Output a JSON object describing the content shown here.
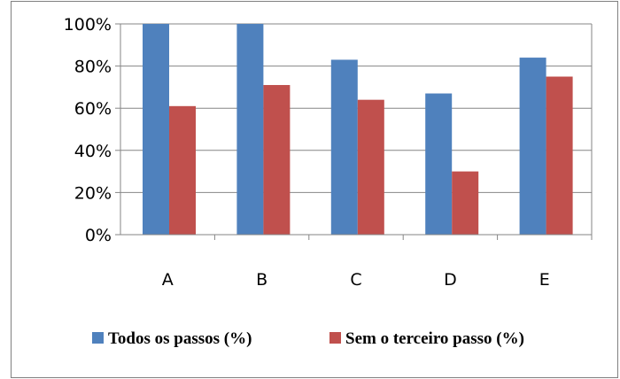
{
  "chart_data": {
    "type": "bar",
    "categories": [
      "A",
      "B",
      "C",
      "D",
      "E"
    ],
    "series": [
      {
        "name": "Todos os passos (%)",
        "color": "#4F81BD",
        "values": [
          100,
          100,
          83,
          67,
          84
        ]
      },
      {
        "name": "Sem o terceiro passo (%)",
        "color": "#C0504D",
        "values": [
          61,
          71,
          64,
          30,
          75
        ]
      }
    ],
    "ylim": [
      0,
      100
    ],
    "yticks": [
      0,
      20,
      40,
      60,
      80,
      100
    ],
    "ytick_labels": [
      "0%",
      "20%",
      "40%",
      "60%",
      "80%",
      "100%"
    ],
    "grid": true,
    "legend": "bottom"
  }
}
